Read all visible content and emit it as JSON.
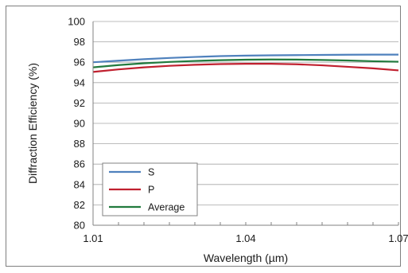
{
  "chart_data": {
    "type": "line",
    "title": "",
    "xlabel": "Wavelength (µm)",
    "ylabel": "Diffraction Efficiency (%)",
    "xlim": [
      1.01,
      1.07
    ],
    "ylim": [
      80,
      100
    ],
    "x_ticks": [
      "1.01",
      "1.04",
      "1.07"
    ],
    "y_ticks": [
      "80",
      "82",
      "84",
      "86",
      "88",
      "90",
      "92",
      "94",
      "96",
      "98",
      "100"
    ],
    "grid": "horizontal",
    "legend": "bottom-left",
    "x": [
      1.01,
      1.015,
      1.02,
      1.025,
      1.03,
      1.035,
      1.04,
      1.045,
      1.05,
      1.055,
      1.06,
      1.065,
      1.07
    ],
    "series": [
      {
        "name": "S",
        "color": "#4f81bd",
        "values": [
          96.0,
          96.15,
          96.3,
          96.42,
          96.52,
          96.6,
          96.65,
          96.68,
          96.7,
          96.72,
          96.74,
          96.75,
          96.75
        ]
      },
      {
        "name": "P",
        "color": "#c0202f",
        "values": [
          95.05,
          95.3,
          95.5,
          95.65,
          95.75,
          95.82,
          95.85,
          95.85,
          95.8,
          95.7,
          95.55,
          95.4,
          95.2
        ]
      },
      {
        "name": "Average",
        "color": "#217a3e",
        "values": [
          95.5,
          95.72,
          95.9,
          96.03,
          96.13,
          96.2,
          96.25,
          96.27,
          96.26,
          96.22,
          96.17,
          96.1,
          96.05
        ]
      }
    ]
  }
}
